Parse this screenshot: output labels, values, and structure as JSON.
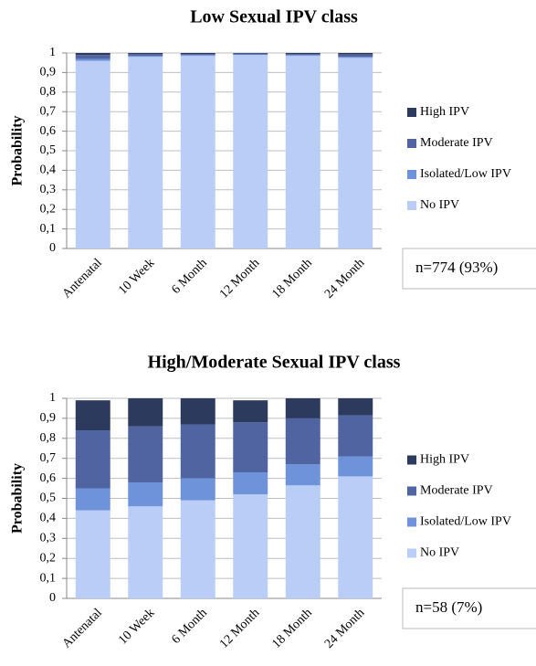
{
  "chart_data": [
    {
      "type": "stacked_bar",
      "title": "Low Sexual IPV class",
      "ylabel": "Probability",
      "annotation": "n=774 (93%)",
      "categories": [
        "Antenatal",
        "10 Week",
        "6 Month",
        "12 Month",
        "18 Month",
        "24 Month"
      ],
      "series": [
        {
          "name": "No IPV",
          "color": "#b9cdf7",
          "values": [
            0.96,
            0.98,
            0.985,
            0.99,
            0.985,
            0.975
          ]
        },
        {
          "name": "Isolated/Low IPV",
          "color": "#6f93db",
          "values": [
            0.01,
            0.005,
            0.005,
            0.003,
            0.005,
            0.005
          ]
        },
        {
          "name": "Moderate IPV",
          "color": "#4f64a0",
          "values": [
            0.02,
            0.01,
            0.005,
            0.004,
            0.005,
            0.012
          ]
        },
        {
          "name": "High IPV",
          "color": "#2c3a5e",
          "values": [
            0.01,
            0.005,
            0.005,
            0.003,
            0.005,
            0.008
          ]
        }
      ],
      "ylim": [
        0,
        1
      ],
      "yticks": [
        0,
        {
          "value": 0.1,
          "label": "0,1"
        },
        {
          "value": 0.2,
          "label": "0,2"
        },
        {
          "value": 0.3,
          "label": "0,3"
        },
        {
          "value": 0.4,
          "label": "0,4"
        },
        {
          "value": 0.5,
          "label": "0,5"
        },
        {
          "value": 0.6,
          "label": "0,6"
        },
        {
          "value": 0.7,
          "label": "0,7"
        },
        {
          "value": 0.8,
          "label": "0,8"
        },
        {
          "value": 0.9,
          "label": "0,9"
        },
        1
      ],
      "grid": true
    },
    {
      "type": "stacked_bar",
      "title": "High/Moderate Sexual IPV class",
      "ylabel": "Probability",
      "annotation": "n=58 (7%)",
      "categories": [
        "Antenatal",
        "10 Week",
        "6 Month",
        "12 Month",
        "18 Month",
        "24 Month"
      ],
      "series": [
        {
          "name": "No IPV",
          "color": "#b9cdf7",
          "values": [
            0.44,
            0.46,
            0.49,
            0.52,
            0.565,
            0.61
          ]
        },
        {
          "name": "Isolated/Low IPV",
          "color": "#6f93db",
          "values": [
            0.11,
            0.12,
            0.11,
            0.11,
            0.105,
            0.1
          ]
        },
        {
          "name": "Moderate IPV",
          "color": "#4f64a0",
          "values": [
            0.29,
            0.28,
            0.27,
            0.25,
            0.23,
            0.205
          ]
        },
        {
          "name": "High IPV",
          "color": "#2c3a5e",
          "values": [
            0.15,
            0.14,
            0.13,
            0.11,
            0.1,
            0.085
          ]
        }
      ],
      "ylim": [
        0,
        1
      ],
      "yticks": [
        0,
        {
          "value": 0.1,
          "label": "0,1"
        },
        {
          "value": 0.2,
          "label": "0,2"
        },
        {
          "value": 0.3,
          "label": "0,3"
        },
        {
          "value": 0.4,
          "label": "0,4"
        },
        {
          "value": 0.5,
          "label": "0,5"
        },
        {
          "value": 0.6,
          "label": "0,6"
        },
        {
          "value": 0.7,
          "label": "0,7"
        },
        {
          "value": 0.8,
          "label": "0,8"
        },
        {
          "value": 0.9,
          "label": "0,9"
        },
        1
      ],
      "grid": true
    }
  ]
}
